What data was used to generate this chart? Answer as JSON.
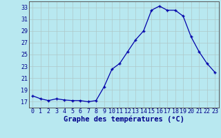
{
  "hours": [
    0,
    1,
    2,
    3,
    4,
    5,
    6,
    7,
    8,
    9,
    10,
    11,
    12,
    13,
    14,
    15,
    16,
    17,
    18,
    19,
    20,
    21,
    22,
    23
  ],
  "temperatures": [
    18.0,
    17.5,
    17.2,
    17.5,
    17.3,
    17.2,
    17.2,
    17.0,
    17.2,
    19.5,
    22.5,
    23.5,
    25.5,
    27.5,
    29.0,
    32.5,
    33.2,
    32.5,
    32.5,
    31.5,
    28.0,
    25.5,
    23.5,
    22.0
  ],
  "ylim": [
    16,
    34
  ],
  "yticks": [
    17,
    19,
    21,
    23,
    25,
    27,
    29,
    31,
    33
  ],
  "xlim": [
    -0.5,
    23.5
  ],
  "xticks": [
    0,
    1,
    2,
    3,
    4,
    5,
    6,
    7,
    8,
    9,
    10,
    11,
    12,
    13,
    14,
    15,
    16,
    17,
    18,
    19,
    20,
    21,
    22,
    23
  ],
  "xlabel": "Graphe des températures (°C)",
  "line_color": "#0000aa",
  "bg_color": "#b8e8f0",
  "grid_color": "#aec8c8",
  "spine_color": "#555555",
  "tick_color": "#00008B",
  "label_color": "#00008B",
  "xlabel_fontsize": 7.5,
  "tick_fontsize": 6,
  "figsize": [
    3.2,
    2.0
  ],
  "dpi": 100
}
